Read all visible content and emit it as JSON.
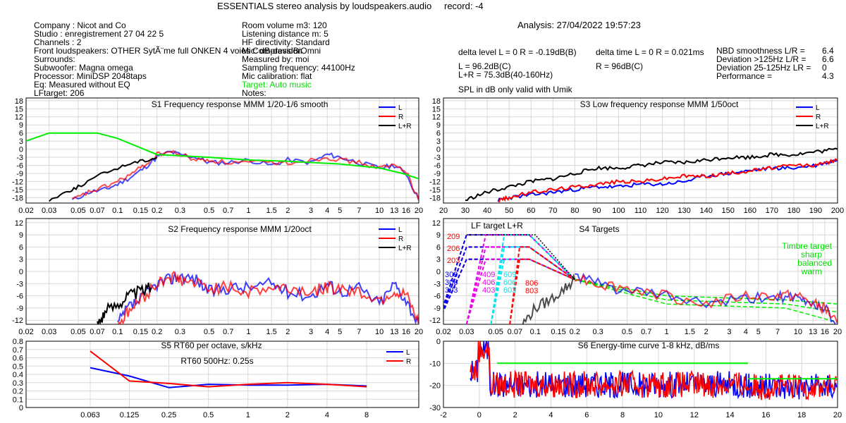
{
  "header": {
    "title": "ESSENTIALS stereo analysis by loudspeakers.audio",
    "record": "record: -4",
    "analysis": "Analysis: 27/04/2022 19:57:23"
  },
  "info_left": [
    "Company : Nicot and Co",
    "Studio : enregistrement 27 04 22 5",
    "Channels : 2",
    "Front loudspeakers: OTHER SytÃ¨me full ONKEN 4 voies Compression",
    "Surrounds:",
    "Subwoofer: Magna omega",
    "Processor: MiniDSP 2048taps",
    "Eq: Measured without EQ",
    "LFtarget: 206"
  ],
  "info_mid": [
    "Room volume m3: 120",
    "Listening distance m: 5",
    "HF directivity: Standard",
    "Mic: dB-davidBiOmni",
    "Measured by: moi",
    "Sampling frequency: 44100Hz",
    "Mic calibration: flat"
  ],
  "info_target": "Target: Auto music",
  "info_notes": "Notes:",
  "stats": {
    "delta_level": "delta level L = 0  R = -0.19dB(B)",
    "delta_time": "delta time  L = 0  R = 0.021ms",
    "spl_l": "L =     96.2dB(C)",
    "spl_r": "R =     96dB(C)",
    "spl_lr": "L+R = 75.3dB(40-160Hz)",
    "umik": "SPL in dB only valid with Umik",
    "nbd_labels": [
      "NBD smoothness L/R =",
      "Deviation >125Hz L/R =",
      "Deviation 25-125Hz LR =",
      "Performance ="
    ],
    "nbd_values": [
      "6.4",
      "6.6",
      "0",
      "4.3"
    ]
  },
  "colors": {
    "L": "#0000ff",
    "R": "#ff0000",
    "LR": "#000000",
    "target": "#00ee00",
    "grid": "#d8d8d8",
    "magenta": "#ee00ee",
    "cyan": "#00e5ee"
  },
  "chart_data": [
    {
      "id": "S1",
      "type": "line",
      "title": "S1  Frequency response MMM 1/20-1/6 smooth",
      "x_scale": "log",
      "xlim": [
        0.02,
        20
      ],
      "x_ticks": [
        "0.02",
        "0.03",
        "0.05",
        "0.07",
        "0.1",
        "0.15",
        "0.2",
        "0.3",
        "0.5",
        "0.7",
        "1",
        "1.5",
        "2",
        "3",
        "4",
        "5",
        "7",
        "10",
        "13",
        "16",
        "20"
      ],
      "ylim": [
        -20,
        19
      ],
      "y_ticks": [
        "18",
        "15",
        "12",
        "9",
        "6",
        "3",
        "0",
        "-3",
        "-6",
        "-9",
        "-12",
        "-15",
        "-18"
      ],
      "legend": [
        "L",
        "R",
        "L+R"
      ],
      "series": [
        {
          "name": "L",
          "x": [
            0.045,
            0.06,
            0.08,
            0.1,
            0.13,
            0.16,
            0.2,
            0.25,
            0.3,
            0.4,
            0.5,
            0.7,
            1,
            1.5,
            2,
            3,
            4,
            5,
            7,
            10,
            13,
            16,
            20
          ],
          "y": [
            -19,
            -16,
            -15,
            -13,
            -10,
            -7,
            -3,
            -1,
            -2,
            -3,
            -5,
            -5,
            -4,
            -6,
            -4,
            -5,
            -2,
            -3,
            -5,
            -7,
            -6,
            -9,
            -19
          ]
        },
        {
          "name": "R",
          "x": [
            0.045,
            0.06,
            0.08,
            0.1,
            0.13,
            0.16,
            0.2,
            0.25,
            0.3,
            0.4,
            0.5,
            0.7,
            1,
            1.5,
            2,
            3,
            4,
            5,
            7,
            10,
            13,
            16,
            20
          ],
          "y": [
            -19,
            -16,
            -14,
            -12,
            -9,
            -6,
            -2,
            -1,
            -2,
            -4,
            -4,
            -5,
            -5,
            -5,
            -5,
            -4,
            -3,
            -4,
            -5,
            -7,
            -6,
            -8,
            -19
          ]
        },
        {
          "name": "L+R",
          "x": [
            0.03,
            0.04,
            0.05,
            0.07,
            0.1,
            0.13,
            0.17,
            0.2
          ],
          "y": [
            -19,
            -16,
            -14,
            -10,
            -7,
            -5,
            -4,
            -3
          ]
        },
        {
          "name": "target",
          "x": [
            0.02,
            0.03,
            0.07,
            0.1,
            0.2,
            0.5,
            1,
            2,
            5,
            10,
            15,
            20
          ],
          "y": [
            3,
            6,
            6,
            4,
            -2,
            -3,
            -4,
            -4.5,
            -5.5,
            -7,
            -9,
            -11
          ]
        }
      ]
    },
    {
      "id": "S3",
      "type": "line",
      "title": "S3  Low frequency response MMM 1/50oct",
      "x_scale": "linear",
      "xlim": [
        20,
        200
      ],
      "x_ticks": [
        "20",
        "30",
        "40",
        "50",
        "60",
        "70",
        "80",
        "90",
        "100",
        "110",
        "120",
        "130",
        "140",
        "150",
        "160",
        "170",
        "180",
        "190",
        "200"
      ],
      "ylim": [
        -20,
        19
      ],
      "y_ticks": [
        "18",
        "15",
        "12",
        "9",
        "6",
        "3",
        "0",
        "-3",
        "-6",
        "-9",
        "-12",
        "-15",
        "-18"
      ],
      "legend": [
        "L",
        "R",
        "L+R"
      ],
      "series": [
        {
          "name": "L",
          "x": [
            45,
            50,
            60,
            70,
            80,
            90,
            100,
            110,
            120,
            130,
            140,
            150,
            160,
            170,
            180,
            190,
            200
          ],
          "y": [
            -19,
            -18,
            -17,
            -16,
            -15,
            -14,
            -14,
            -13,
            -13,
            -12,
            -10,
            -9,
            -8,
            -7,
            -7,
            -6,
            -4
          ]
        },
        {
          "name": "R",
          "x": [
            45,
            50,
            60,
            70,
            80,
            90,
            100,
            110,
            120,
            130,
            140,
            150,
            160,
            170,
            180,
            190,
            200
          ],
          "y": [
            -19,
            -18,
            -16,
            -15,
            -14,
            -13,
            -12,
            -12,
            -11,
            -10,
            -10,
            -9,
            -8,
            -7,
            -6,
            -6,
            -4
          ]
        },
        {
          "name": "L+R",
          "x": [
            30,
            40,
            50,
            60,
            70,
            80,
            90,
            100,
            110,
            120,
            130,
            140,
            150,
            160,
            170,
            180,
            190,
            200
          ],
          "y": [
            -19,
            -16,
            -14,
            -12,
            -11,
            -9,
            -7,
            -7,
            -6,
            -5,
            -5,
            -4,
            -3,
            -3,
            -2,
            -2,
            -1,
            0
          ]
        }
      ]
    },
    {
      "id": "S2",
      "type": "line",
      "title": "S2  Frequency response MMM 1/20oct",
      "x_scale": "log",
      "xlim": [
        0.02,
        20
      ],
      "x_ticks": [
        "0.02",
        "0.03",
        "0.05",
        "0.07",
        "0.1",
        "0.15",
        "0.2",
        "0.3",
        "0.5",
        "0.7",
        "1",
        "1.5",
        "2",
        "3",
        "4",
        "5",
        "7",
        "10",
        "13",
        "16",
        "20"
      ],
      "ylim": [
        -13,
        13
      ],
      "y_ticks": [
        "12",
        "9",
        "6",
        "3",
        "0",
        "-3",
        "-6",
        "-9",
        "-12"
      ],
      "legend": [
        "L",
        "R",
        "L+R"
      ],
      "series": [
        {
          "name": "L",
          "x": [
            0.1,
            0.12,
            0.15,
            0.2,
            0.25,
            0.3,
            0.4,
            0.5,
            0.7,
            1,
            1.5,
            2,
            3,
            4,
            5,
            7,
            10,
            13,
            16,
            20
          ],
          "y": [
            -13,
            -9,
            -7,
            -3,
            -2,
            -1,
            -2,
            -5,
            -4,
            -4,
            -3,
            -5,
            -6,
            -3,
            -5,
            -4,
            -8,
            -3,
            -7,
            -13
          ]
        },
        {
          "name": "R",
          "x": [
            0.1,
            0.12,
            0.15,
            0.2,
            0.25,
            0.3,
            0.4,
            0.5,
            0.7,
            1,
            1.5,
            2,
            3,
            4,
            5,
            7,
            10,
            13,
            16,
            20
          ],
          "y": [
            -13,
            -10,
            -7,
            -3,
            -1,
            -2,
            -3,
            -4,
            -4,
            -5,
            -4,
            -4,
            -5,
            -4,
            -4,
            -5,
            -7,
            -5,
            -6,
            -13
          ]
        },
        {
          "name": "L+R",
          "x": [
            0.07,
            0.08,
            0.1,
            0.12,
            0.15,
            0.18
          ],
          "y": [
            -13,
            -10,
            -8,
            -6,
            -5,
            -4
          ]
        }
      ]
    },
    {
      "id": "S4",
      "type": "line",
      "title": "S4 Targets",
      "subtitle": "LF target L+R",
      "x_scale": "log",
      "xlim": [
        0.02,
        20
      ],
      "x_ticks": [
        "0.02",
        "0.03",
        "0.05",
        "0.07",
        "0.1",
        "0.15",
        "0.2",
        "0.3",
        "0.5",
        "0.7",
        "1",
        "1.5",
        "2",
        "3",
        "4",
        "5",
        "7",
        "10",
        "13",
        "16",
        "20"
      ],
      "ylim": [
        -13,
        13
      ],
      "y_ticks": [
        "12",
        "9",
        "6",
        "3",
        "0",
        "-3",
        "-6",
        "-9",
        "-12"
      ],
      "labels_red_left": [
        "209",
        "206",
        "203"
      ],
      "labels_blue": [
        "309",
        "306",
        "303"
      ],
      "labels_magenta": [
        "409",
        "406",
        "403"
      ],
      "labels_cyan": [
        "609",
        "606",
        "603"
      ],
      "labels_red_right": [
        "806",
        "803"
      ],
      "timbre_labels": [
        "Timbre target",
        "sharp",
        "balanced",
        "warm"
      ],
      "series": [
        {
          "name": "L",
          "x": [
            0.2,
            0.3,
            0.5,
            1,
            2,
            4,
            7,
            10,
            13,
            16,
            20
          ],
          "y": [
            -1,
            -3,
            -5,
            -6,
            -8,
            -7,
            -6,
            -7,
            -8,
            -9,
            -13
          ]
        },
        {
          "name": "R",
          "x": [
            0.2,
            0.3,
            0.5,
            1,
            2,
            4,
            7,
            10,
            13,
            16,
            20
          ],
          "y": [
            -1,
            -3,
            -4,
            -6,
            -8,
            -6,
            -6,
            -6,
            -8,
            -9,
            -13
          ]
        },
        {
          "name": "L+R",
          "x": [
            0.08,
            0.1,
            0.13,
            0.17,
            0.2
          ],
          "y": [
            -13,
            -9,
            -7,
            -4,
            -2
          ]
        }
      ]
    },
    {
      "id": "S5",
      "type": "line",
      "title": "S5  RT60 per octave, s/kHz",
      "annotation": "RT60 500Hz: 0.25s",
      "x_scale": "log2",
      "x_ticks": [
        "0.063",
        "0.125",
        "0.25",
        "0.5",
        "1",
        "2",
        "4",
        "8"
      ],
      "ylim": [
        0,
        0.8
      ],
      "y_ticks": [
        "0.8",
        "0.7",
        "0.6",
        "0.5",
        "0.4",
        "0.3",
        "0.2",
        "0.1",
        "0"
      ],
      "legend": [
        "L",
        "R"
      ],
      "series": [
        {
          "name": "L",
          "x": [
            0.063,
            0.125,
            0.25,
            0.5,
            1,
            2,
            4,
            8
          ],
          "y": [
            0.48,
            0.38,
            0.24,
            0.28,
            0.27,
            0.27,
            0.28,
            0.26
          ]
        },
        {
          "name": "R",
          "x": [
            0.063,
            0.125,
            0.25,
            0.5,
            1,
            2,
            4,
            8
          ],
          "y": [
            0.68,
            0.32,
            0.29,
            0.25,
            0.28,
            0.3,
            0.28,
            0.25
          ]
        }
      ]
    },
    {
      "id": "S6",
      "type": "line",
      "title": "S6  Energy-time curve 1-8 kHz, dB/ms",
      "x_scale": "linear",
      "xlim": [
        -2,
        20
      ],
      "x_ticks": [
        "-2",
        "0",
        "2",
        "4",
        "6",
        "8",
        "10",
        "12",
        "14",
        "16",
        "18",
        "20"
      ],
      "ylim": [
        -30,
        0
      ],
      "y_ticks": [
        "0",
        "-10",
        "-20",
        "-30"
      ],
      "series": [
        {
          "name": "target",
          "x": [
            1,
            15
          ],
          "y": [
            -10,
            -10
          ]
        },
        {
          "name": "target2",
          "x": [
            15,
            20
          ],
          "y": [
            -17,
            -17
          ]
        }
      ]
    }
  ]
}
